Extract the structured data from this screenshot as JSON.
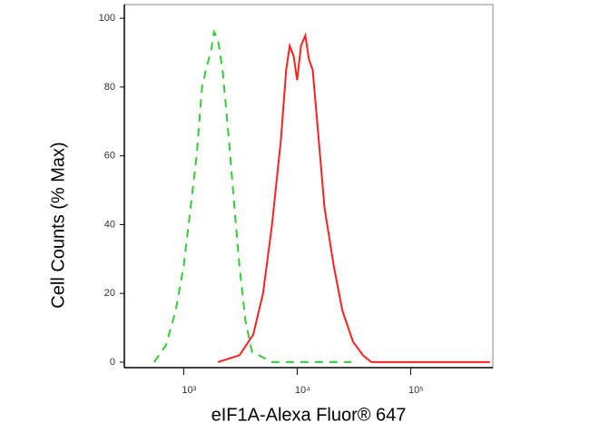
{
  "chart_data": {
    "type": "line",
    "xlabel": "eIF1A-Alexa Fluor® 647",
    "ylabel": "Cell Counts (% Max)",
    "xscale": "log",
    "xlim": [
      300,
      530000
    ],
    "ylim": [
      -1.6,
      104
    ],
    "xticks": [
      {
        "value": 1000,
        "label": "10³"
      },
      {
        "value": 10000,
        "label": "10⁴"
      },
      {
        "value": 100000,
        "label": "10⁵"
      }
    ],
    "yticks": [
      0,
      20,
      40,
      60,
      80,
      100
    ],
    "series": [
      {
        "color": "#33cc33",
        "dash": true,
        "x": [
          550,
          700,
          850,
          1000,
          1150,
          1300,
          1450,
          1600,
          1750,
          1850,
          2000,
          2200,
          2500,
          2800,
          3100,
          3500,
          4000,
          6000,
          10000,
          30000
        ],
        "values": [
          0,
          5,
          15,
          28,
          45,
          60,
          80,
          86,
          91,
          96,
          94,
          85,
          65,
          45,
          28,
          12,
          3,
          0,
          0,
          0
        ]
      },
      {
        "color": "#ff2020",
        "dash": false,
        "x": [
          2000,
          3100,
          4100,
          5000,
          6000,
          7200,
          8000,
          8600,
          9300,
          10000,
          10800,
          11800,
          12700,
          13700,
          15000,
          17400,
          21000,
          25000,
          31000,
          38000,
          45000,
          500000
        ],
        "values": [
          0,
          2,
          8,
          20,
          40,
          65,
          85,
          92,
          89,
          82,
          92,
          95,
          88,
          85,
          70,
          45,
          28,
          15,
          6,
          2,
          0,
          0
        ]
      }
    ]
  }
}
